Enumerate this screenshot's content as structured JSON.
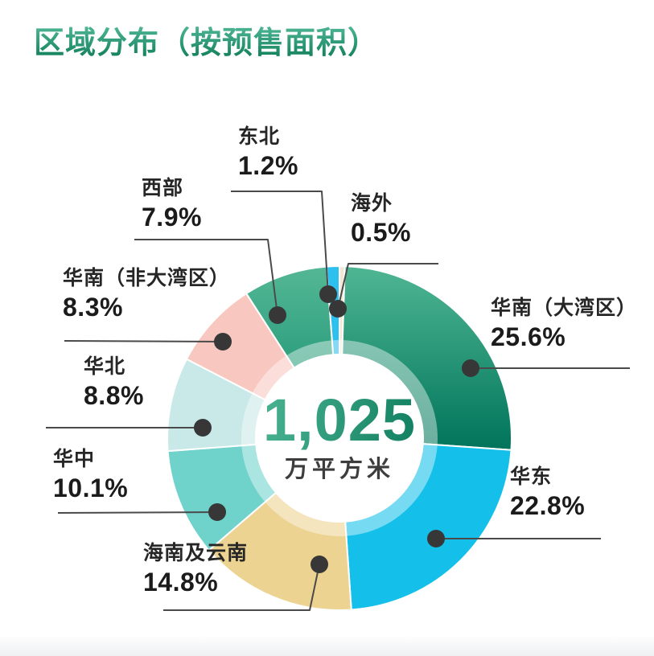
{
  "title": "区域分布（按预售面积）",
  "colors": {
    "background": "#ffffff",
    "title_gradient": [
      "#55bc9b",
      "#0f7d59"
    ],
    "center_value_gradient": [
      "#4cb493",
      "#0b7a5b"
    ],
    "center_unit_text": "#3d3d3d",
    "label_name_text": "#262626",
    "label_percent_text": "#1b1b1b",
    "leader_line": "#4a4a4a",
    "dot": "#373737",
    "slice_separator": "#ffffff",
    "inner_ring": "#ffffff"
  },
  "chart_data": {
    "type": "pie",
    "subtype": "donut",
    "title": "区域分布（按预售面积）",
    "center_label": {
      "value": "1,025",
      "unit": "万平方米"
    },
    "start_angle_deg": 0,
    "direction": "clockwise",
    "values_unit": "percent",
    "legend_position": "around-slices",
    "slices": [
      {
        "key": "overseas",
        "label": "海外",
        "value": 0.5,
        "pct_label": "0.5%",
        "color": "#efe8d2"
      },
      {
        "key": "south-china-gba",
        "label": "华南（大湾区）",
        "value": 25.6,
        "pct_label": "25.6%",
        "gradient": [
          "#4fb693",
          "#00745a"
        ]
      },
      {
        "key": "east-china",
        "label": "华东",
        "value": 22.8,
        "pct_label": "22.8%",
        "color": "#14c0e9"
      },
      {
        "key": "hainan-yunnan",
        "label": "海南及云南",
        "value": 14.8,
        "pct_label": "14.8%",
        "color": "#ecd391"
      },
      {
        "key": "central-china",
        "label": "华中",
        "value": 10.1,
        "pct_label": "10.1%",
        "color": "#6fd2cb"
      },
      {
        "key": "north-china",
        "label": "华北",
        "value": 8.8,
        "pct_label": "8.8%",
        "color": "#c8e9e7"
      },
      {
        "key": "south-china-non-gba",
        "label": "华南（非大湾区）",
        "value": 8.3,
        "pct_label": "8.3%",
        "color": "#f8c7c0"
      },
      {
        "key": "western-china",
        "label": "西部",
        "value": 7.9,
        "pct_label": "7.9%",
        "gradient": [
          "#54b795",
          "#2c9e7d"
        ]
      },
      {
        "key": "northeast",
        "label": "东北",
        "value": 1.2,
        "pct_label": "1.2%",
        "color": "#2cc0ef"
      }
    ]
  }
}
